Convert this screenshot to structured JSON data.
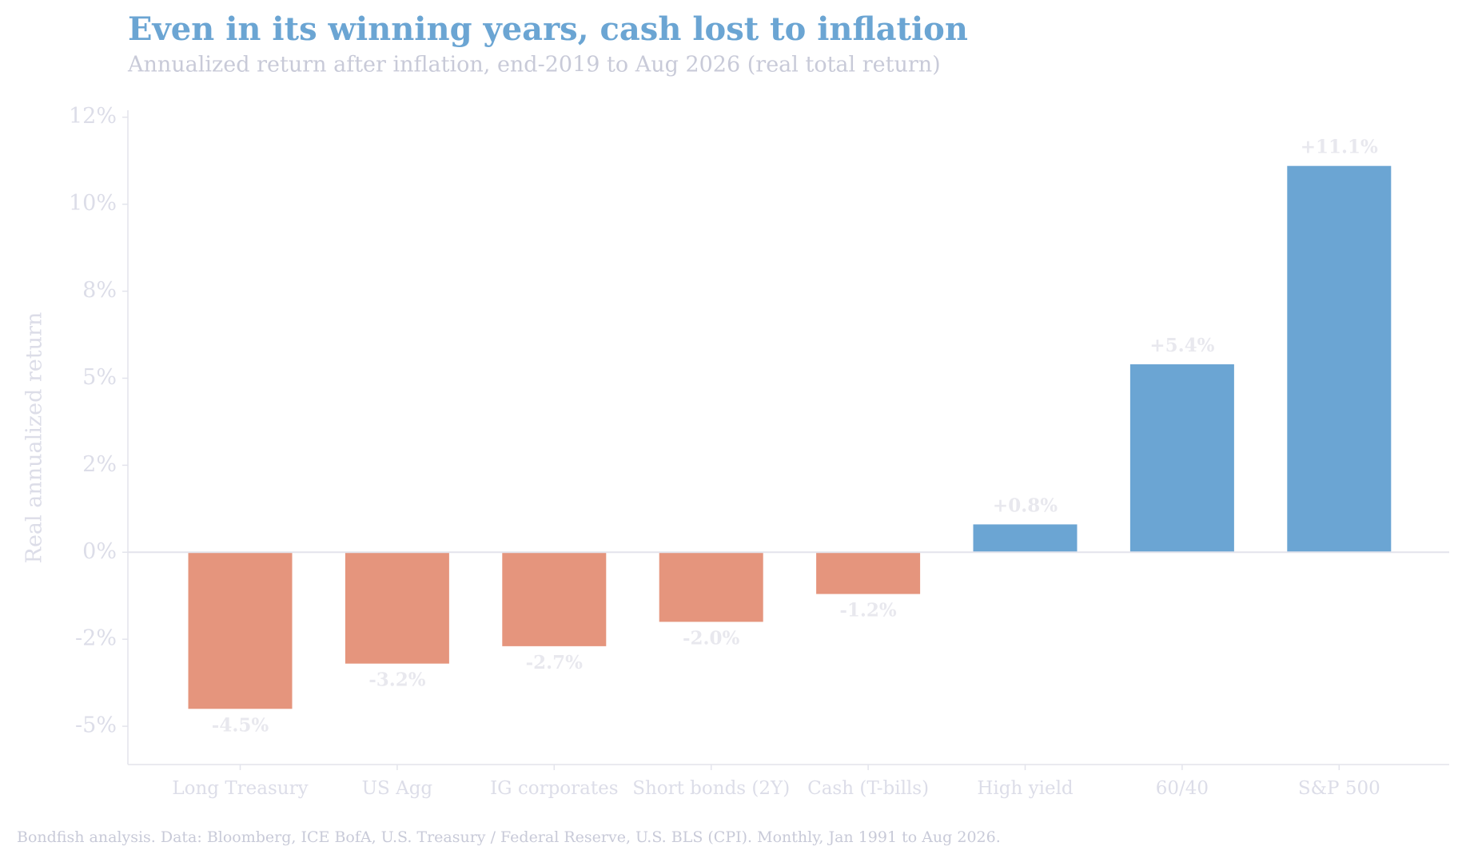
{
  "chart_data": {
    "type": "bar",
    "title": "Even in its winning years, cash lost to inflation",
    "subtitle": "Annualized return after inflation, end-2019 to Aug 2026 (real total return)",
    "y_label": "Real annualized return",
    "footer": "Bondfish analysis. Data: Bloomberg, ICE BofA, U.S. Treasury / Federal Reserve, U.S. BLS (CPI). Monthly, Jan 1991 to Aug 2026.",
    "categories": [
      "Long Treasury",
      "US Agg",
      "IG corporates",
      "Short bonds (2Y)",
      "Cash (T-bills)",
      "High yield",
      "60/40",
      "S&P 500"
    ],
    "values": [
      -4.5,
      -3.2,
      -2.7,
      -2.0,
      -1.2,
      0.8,
      5.4,
      11.1
    ],
    "value_labels": [
      "-4.5%",
      "-3.2%",
      "-2.7%",
      "-2.0%",
      "-1.2%",
      "+0.8%",
      "+5.4%",
      "+11.1%"
    ],
    "colors": [
      "#e5957d",
      "#e5957d",
      "#e5957d",
      "#e5957d",
      "#e5957d",
      "#6ba5d3",
      "#6ba5d3",
      "#6ba5d3"
    ],
    "ylim": [
      -6.1,
      12.7
    ],
    "yticks": [
      {
        "value": -5,
        "label": "-5%"
      },
      {
        "value": -2.5,
        "label": "-2%"
      },
      {
        "value": 0,
        "label": "0%"
      },
      {
        "value": 2.5,
        "label": "2%"
      },
      {
        "value": 5,
        "label": "5%"
      },
      {
        "value": 7.5,
        "label": "8%"
      },
      {
        "value": 10,
        "label": "10%"
      },
      {
        "value": 12.5,
        "label": "12%"
      }
    ],
    "zero_line": true
  }
}
